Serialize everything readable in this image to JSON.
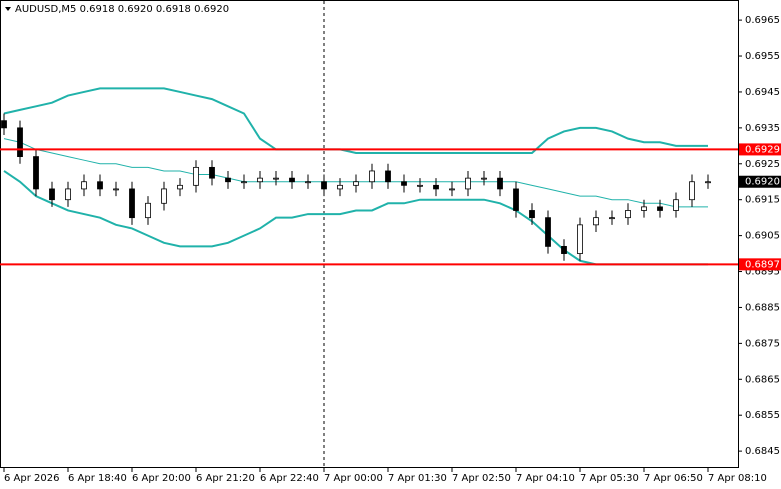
{
  "chart_data": {
    "type": "candlestick",
    "title": "AUDUSD,M5  0.6918 0.6920 0.6918 0.6920",
    "categories": [
      "6 Apr 2026",
      null,
      null,
      null,
      "6 Apr 18:40",
      null,
      null,
      null,
      "6 Apr 20:00",
      null,
      null,
      null,
      "6 Apr 21:20",
      null,
      null,
      null,
      "6 Apr 22:40",
      null,
      null,
      null,
      "7 Apr 00:00",
      null,
      null,
      null,
      "7 Apr 01:30",
      null,
      null,
      null,
      "7 Apr 02:50",
      null,
      null,
      null,
      "7 Apr 04:10",
      null,
      null,
      null,
      "7 Apr 05:30",
      null,
      null,
      null,
      "7 Apr 06:50",
      null,
      null,
      null,
      "7 Apr 08:10"
    ],
    "open": [
      0.6937,
      0.6935,
      0.6927,
      0.6918,
      0.6915,
      0.6918,
      0.692,
      0.6918,
      0.6918,
      0.691,
      0.6914,
      0.6918,
      0.6919,
      0.6924,
      0.6921,
      0.692,
      0.692,
      0.6921,
      0.6921,
      0.692,
      0.692,
      0.6918,
      0.6919,
      0.692,
      0.6923,
      0.692,
      0.6919,
      0.6919,
      0.6918,
      0.6918,
      0.6921,
      0.6921,
      0.6918,
      0.6912,
      0.691,
      0.6902,
      0.69,
      0.6908,
      0.691,
      0.691,
      0.6912,
      0.6913,
      0.6912,
      0.6915,
      0.692
    ],
    "high": [
      0.6939,
      0.6937,
      0.6929,
      0.692,
      0.692,
      0.6922,
      0.6922,
      0.692,
      0.692,
      0.6916,
      0.692,
      0.6921,
      0.6926,
      0.6926,
      0.6923,
      0.6922,
      0.6923,
      0.6923,
      0.6923,
      0.6922,
      0.6922,
      0.6921,
      0.6922,
      0.6925,
      0.6925,
      0.6922,
      0.6921,
      0.6921,
      0.692,
      0.6923,
      0.6923,
      0.6923,
      0.692,
      0.6914,
      0.6912,
      0.6904,
      0.691,
      0.6912,
      0.6912,
      0.6914,
      0.6915,
      0.6915,
      0.6917,
      0.6922,
      0.6922
    ],
    "low": [
      0.6933,
      0.6925,
      0.6916,
      0.6913,
      0.6913,
      0.6916,
      0.6916,
      0.6916,
      0.6908,
      0.6908,
      0.6912,
      0.6916,
      0.6917,
      0.6919,
      0.6918,
      0.6918,
      0.6918,
      0.6919,
      0.6918,
      0.6918,
      0.6916,
      0.6916,
      0.6917,
      0.6918,
      0.6918,
      0.6917,
      0.6917,
      0.6916,
      0.6916,
      0.6916,
      0.6919,
      0.6916,
      0.691,
      0.6908,
      0.69,
      0.6898,
      0.6898,
      0.6906,
      0.6908,
      0.6908,
      0.691,
      0.691,
      0.691,
      0.6913,
      0.6918
    ],
    "close": [
      0.6935,
      0.6927,
      0.6918,
      0.6915,
      0.6918,
      0.692,
      0.6918,
      0.6918,
      0.691,
      0.6914,
      0.6918,
      0.6919,
      0.6924,
      0.6921,
      0.692,
      0.692,
      0.6921,
      0.6921,
      0.692,
      0.692,
      0.6918,
      0.6919,
      0.692,
      0.6923,
      0.692,
      0.6919,
      0.6919,
      0.6918,
      0.6918,
      0.6921,
      0.6921,
      0.6918,
      0.6912,
      0.691,
      0.6902,
      0.69,
      0.6908,
      0.691,
      0.691,
      0.6912,
      0.6913,
      0.6912,
      0.6915,
      0.692,
      0.692
    ],
    "bands": {
      "upper": [
        0.6939,
        0.694,
        0.6941,
        0.6942,
        0.6944,
        0.6945,
        0.6946,
        0.6946,
        0.6946,
        0.6946,
        0.6946,
        0.6945,
        0.6944,
        0.6943,
        0.6941,
        0.6939,
        0.6932,
        0.6929,
        0.6929,
        0.6929,
        0.6929,
        0.6929,
        0.6928,
        0.6928,
        0.6928,
        0.6928,
        0.6928,
        0.6928,
        0.6928,
        0.6928,
        0.6928,
        0.6928,
        0.6928,
        0.6928,
        0.6932,
        0.6934,
        0.6935,
        0.6935,
        0.6934,
        0.6932,
        0.6931,
        0.6931,
        0.693,
        0.693,
        0.693
      ],
      "middle": [
        0.6932,
        0.6931,
        0.6929,
        0.6928,
        0.6927,
        0.6926,
        0.6925,
        0.6925,
        0.6924,
        0.6924,
        0.6923,
        0.6923,
        0.6922,
        0.6922,
        0.6921,
        0.692,
        0.692,
        0.692,
        0.692,
        0.692,
        0.692,
        0.692,
        0.692,
        0.692,
        0.692,
        0.692,
        0.692,
        0.692,
        0.692,
        0.692,
        0.692,
        0.692,
        0.692,
        0.6919,
        0.6918,
        0.6917,
        0.6916,
        0.6916,
        0.6915,
        0.6915,
        0.6914,
        0.6914,
        0.6913,
        0.6913,
        0.6913
      ],
      "lower": [
        0.6923,
        0.692,
        0.6916,
        0.6914,
        0.6912,
        0.6911,
        0.691,
        0.6908,
        0.6907,
        0.6905,
        0.6903,
        0.6902,
        0.6902,
        0.6902,
        0.6903,
        0.6905,
        0.6907,
        0.691,
        0.691,
        0.6911,
        0.6911,
        0.6911,
        0.6912,
        0.6912,
        0.6914,
        0.6914,
        0.6915,
        0.6915,
        0.6915,
        0.6915,
        0.6915,
        0.6914,
        0.6912,
        0.6909,
        0.6905,
        0.6901,
        0.6898,
        0.6897,
        0.6897,
        0.6897,
        0.6897,
        0.6897,
        0.6897,
        0.6897,
        0.6897
      ]
    },
    "band_color": "#20b2aa",
    "candle_color": "#000000",
    "levels": [
      0.6929,
      0.6897
    ],
    "level_color": "#ff0000",
    "last_price": {
      "value": 0.692,
      "label": "0.6920"
    },
    "ylim": [
      0.68403,
      0.69706
    ],
    "yticks": [
      0.6965,
      0.6955,
      0.6945,
      0.6935,
      0.6925,
      0.6915,
      0.6905,
      0.6895,
      0.6885,
      0.6875,
      0.6865,
      0.6855,
      0.6845
    ]
  }
}
